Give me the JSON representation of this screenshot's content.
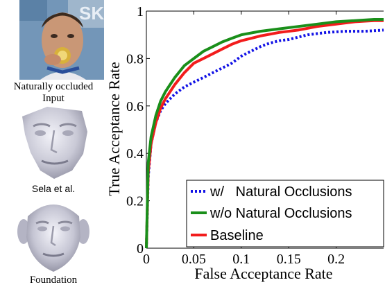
{
  "figure": {
    "captions": {
      "occluded": "Naturally occluded",
      "input": "Input",
      "sela": "Sela et al.",
      "foundation": "Foundation"
    }
  },
  "colors": {
    "blue": "#1212e6",
    "green": "#1a8f1a",
    "red": "#f21c1c"
  },
  "chart_data": {
    "type": "line",
    "title": "",
    "xlabel": "False Acceptance Rate",
    "ylabel": "True Acceptance Rate",
    "xlim": [
      0,
      0.25
    ],
    "ylim": [
      0,
      1
    ],
    "xticks": [
      "0",
      "0.05",
      "0.1",
      "0.15",
      "0.2"
    ],
    "xtick_values": [
      0,
      0.05,
      0.1,
      0.15,
      0.2
    ],
    "yticks": [
      "0",
      "0.2",
      "0.4",
      "0.6",
      "0.8",
      "1"
    ],
    "ytick_values": [
      0,
      0.2,
      0.4,
      0.6,
      0.8,
      1
    ],
    "grid": false,
    "legend_position": "bottom-right",
    "series": [
      {
        "name": "w/   Natural Occlusions",
        "color": "#1212e6",
        "style": "dotted",
        "x": [
          0,
          0.002,
          0.005,
          0.01,
          0.015,
          0.02,
          0.025,
          0.03,
          0.04,
          0.05,
          0.06,
          0.07,
          0.08,
          0.09,
          0.1,
          0.11,
          0.12,
          0.13,
          0.14,
          0.15,
          0.17,
          0.19,
          0.21,
          0.23,
          0.25
        ],
        "y": [
          0,
          0.3,
          0.44,
          0.53,
          0.58,
          0.61,
          0.63,
          0.65,
          0.68,
          0.7,
          0.72,
          0.74,
          0.76,
          0.78,
          0.81,
          0.83,
          0.85,
          0.865,
          0.875,
          0.88,
          0.9,
          0.91,
          0.915,
          0.915,
          0.92
        ]
      },
      {
        "name": "w/o Natural Occlusions",
        "color": "#1a8f1a",
        "style": "solid",
        "x": [
          0,
          0.002,
          0.005,
          0.01,
          0.015,
          0.02,
          0.025,
          0.03,
          0.04,
          0.05,
          0.06,
          0.07,
          0.08,
          0.09,
          0.1,
          0.12,
          0.14,
          0.16,
          0.18,
          0.2,
          0.22,
          0.24,
          0.25
        ],
        "y": [
          0,
          0.36,
          0.47,
          0.56,
          0.62,
          0.66,
          0.69,
          0.72,
          0.77,
          0.8,
          0.83,
          0.85,
          0.87,
          0.885,
          0.9,
          0.915,
          0.925,
          0.935,
          0.945,
          0.955,
          0.96,
          0.965,
          0.965
        ]
      },
      {
        "name": "Baseline",
        "color": "#f21c1c",
        "style": "solid",
        "x": [
          0,
          0.002,
          0.005,
          0.01,
          0.015,
          0.02,
          0.025,
          0.03,
          0.04,
          0.05,
          0.06,
          0.07,
          0.08,
          0.09,
          0.1,
          0.12,
          0.14,
          0.16,
          0.18,
          0.2,
          0.22,
          0.24,
          0.25
        ],
        "y": [
          0,
          0.32,
          0.44,
          0.53,
          0.59,
          0.63,
          0.66,
          0.69,
          0.74,
          0.78,
          0.8,
          0.82,
          0.84,
          0.86,
          0.875,
          0.895,
          0.91,
          0.92,
          0.935,
          0.945,
          0.955,
          0.96,
          0.96
        ]
      }
    ]
  }
}
